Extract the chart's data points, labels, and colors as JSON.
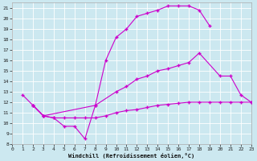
{
  "bg_color": "#cce8f0",
  "line_color": "#cc00cc",
  "xlabel": "Windchill (Refroidissement éolien,°C)",
  "xlim": [
    0,
    23
  ],
  "ylim": [
    8,
    21.5
  ],
  "xticks": [
    0,
    1,
    2,
    3,
    4,
    5,
    6,
    7,
    8,
    9,
    10,
    11,
    12,
    13,
    14,
    15,
    16,
    17,
    18,
    19,
    20,
    21,
    22,
    23
  ],
  "yticks": [
    8,
    9,
    10,
    11,
    12,
    13,
    14,
    15,
    16,
    17,
    18,
    19,
    20,
    21
  ],
  "s1_x": [
    1,
    2,
    3,
    4,
    5,
    6,
    7,
    8,
    9,
    10,
    11,
    12,
    13,
    14,
    15,
    16,
    17,
    18,
    19
  ],
  "s1_y": [
    12.7,
    11.7,
    10.7,
    10.5,
    9.7,
    9.7,
    8.5,
    11.7,
    16.0,
    18.2,
    19.0,
    20.2,
    20.5,
    20.8,
    21.2,
    21.2,
    21.2,
    20.8,
    19.3
  ],
  "s2_x": [
    2,
    3,
    4,
    5,
    6,
    7,
    8,
    9,
    10,
    11,
    12,
    13,
    14,
    15,
    16,
    17,
    18,
    19,
    20,
    21,
    22,
    23
  ],
  "s2_y": [
    11.7,
    10.7,
    10.5,
    10.5,
    10.5,
    10.5,
    10.5,
    10.7,
    11.0,
    11.2,
    11.3,
    11.5,
    11.7,
    11.8,
    11.9,
    12.0,
    12.0,
    12.0,
    12.0,
    12.0,
    12.0,
    12.0
  ],
  "s3_x": [
    2,
    3,
    8,
    10,
    11,
    12,
    13,
    14,
    15,
    16,
    17,
    18,
    20,
    21,
    22,
    23
  ],
  "s3_y": [
    11.7,
    10.7,
    11.7,
    13.0,
    13.5,
    14.2,
    14.5,
    15.0,
    15.2,
    15.5,
    15.8,
    16.7,
    14.5,
    14.5,
    12.7,
    12.0
  ]
}
